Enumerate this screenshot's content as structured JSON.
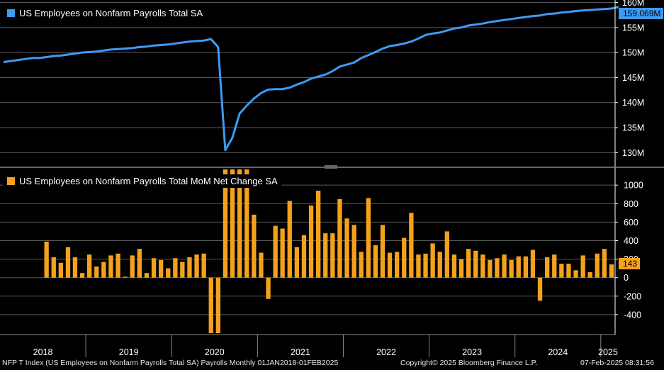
{
  "colors": {
    "top_line": "#3d9bf2",
    "bottom_bar": "#f4a21b",
    "grid": "#5a5a5a",
    "axis_text": "#ffffff",
    "bg": "#000000"
  },
  "chart_data": [
    {
      "type": "line",
      "title": "US Employees on Nonfarm Payrolls Total SA",
      "unit": "M",
      "ylim": [
        127.5,
        160.5
      ],
      "yticks": [
        130,
        135,
        140,
        145,
        150,
        155,
        160
      ],
      "ytick_labels": [
        "130M",
        "135M",
        "140M",
        "145M",
        "150M",
        "155M",
        "160M"
      ],
      "last_value_label": "159.069M",
      "x_start": "Jan 2018",
      "x_end": "Feb 2025",
      "values": [
        148.1,
        148.3,
        148.5,
        148.7,
        148.9,
        148.9,
        149.1,
        149.3,
        149.4,
        149.6,
        149.8,
        150.0,
        150.1,
        150.2,
        150.4,
        150.6,
        150.7,
        150.8,
        150.9,
        151.1,
        151.2,
        151.4,
        151.5,
        151.6,
        151.8,
        152.0,
        152.2,
        152.3,
        152.4,
        152.7,
        151.1,
        130.5,
        133.0,
        137.8,
        139.4,
        140.8,
        141.9,
        142.6,
        142.7,
        142.7,
        143.0,
        143.6,
        144.1,
        144.8,
        145.2,
        145.6,
        146.3,
        147.2,
        147.6,
        148.0,
        148.9,
        149.5,
        150.1,
        150.8,
        151.3,
        151.5,
        151.8,
        152.2,
        152.8,
        153.5,
        153.8,
        154.0,
        154.4,
        154.8,
        155.0,
        155.4,
        155.6,
        155.8,
        156.1,
        156.3,
        156.5,
        156.7,
        156.9,
        157.1,
        157.3,
        157.4,
        157.7,
        157.8,
        158.0,
        158.1,
        158.3,
        158.4,
        158.5,
        158.6,
        158.7,
        158.8,
        159.1
      ]
    },
    {
      "type": "bar",
      "title": "US Employees on Nonfarm Payrolls Total MoM Net Change SA",
      "ylim": [
        -600,
        1170
      ],
      "yticks": [
        -400,
        -200,
        0,
        200,
        400,
        600,
        800,
        1000
      ],
      "ytick_labels": [
        "-400",
        "-200",
        "0",
        "200",
        "400",
        "600",
        "800",
        "1000"
      ],
      "last_value_label": "143",
      "values": [
        389,
        220,
        160,
        330,
        220,
        50,
        250,
        120,
        170,
        240,
        260,
        10,
        240,
        310,
        50,
        210,
        190,
        100,
        210,
        170,
        220,
        250,
        260,
        -600,
        -600,
        1170,
        1170,
        1170,
        1170,
        680,
        270,
        -230,
        560,
        530,
        830,
        330,
        460,
        780,
        940,
        480,
        480,
        850,
        640,
        570,
        280,
        860,
        350,
        570,
        270,
        280,
        430,
        700,
        250,
        260,
        370,
        280,
        500,
        250,
        200,
        310,
        290,
        250,
        190,
        210,
        250,
        190,
        230,
        230,
        300,
        -250,
        220,
        250,
        150,
        150,
        80,
        240,
        60,
        260,
        310,
        143
      ],
      "x_axis_labels": [
        "2018",
        "2019",
        "2020",
        "2021",
        "2022",
        "2023",
        "2024",
        "2025"
      ]
    }
  ],
  "footer": {
    "left": "NFP T Index (US Employees on Nonfarm Payrolls Total SA) Payrolls  Monthly 01JAN2018-01FEB2025",
    "middle": "Copyright© 2025 Bloomberg Finance L.P.",
    "right": "07-Feb-2025 08:31:56"
  }
}
